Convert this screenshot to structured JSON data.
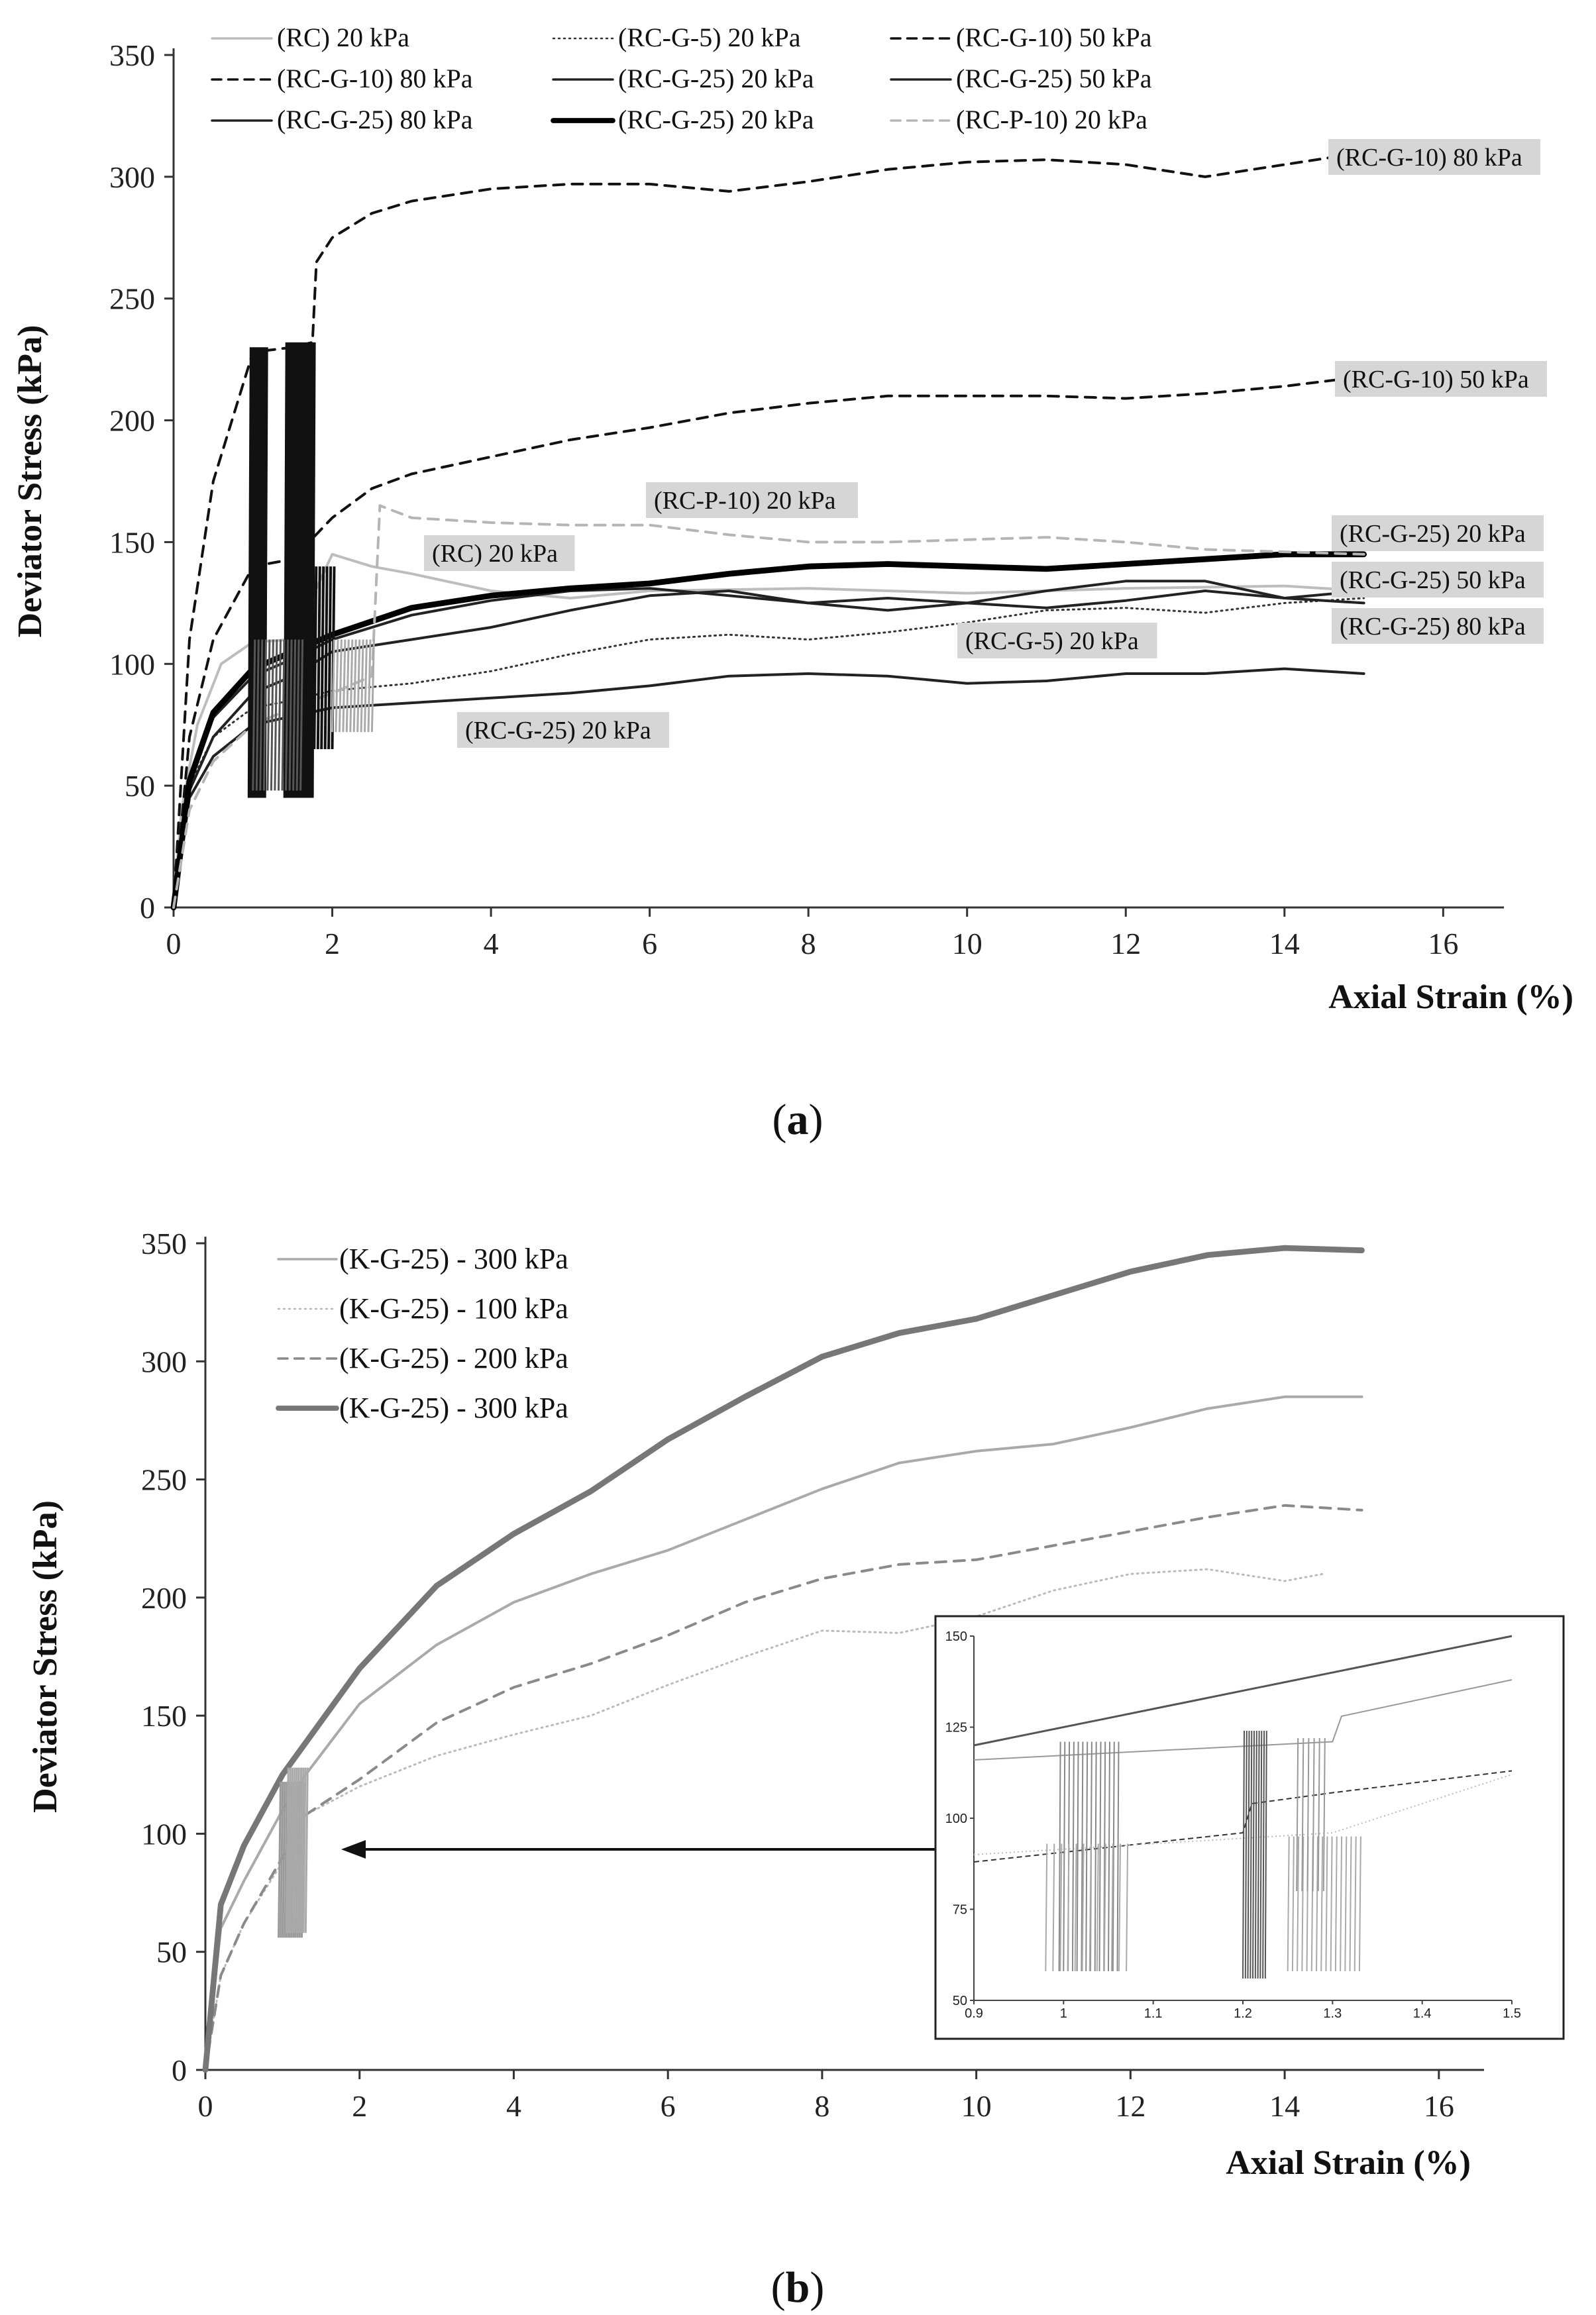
{
  "chart_data": [
    {
      "panel": "(a)",
      "caption_letter": "a",
      "type": "line",
      "xlabel": "Axial Strain  (%)",
      "ylabel": "Deviator Stress  (kPa)",
      "xlim": [
        0,
        17.5
      ],
      "ylim": [
        0,
        350
      ],
      "xticks": [
        0,
        2,
        4,
        6,
        8,
        10,
        12,
        14,
        16
      ],
      "yticks": [
        0,
        50,
        100,
        150,
        200,
        250,
        300,
        350
      ],
      "legend_position": "top",
      "series": [
        {
          "name": "(RC) 20 kPa",
          "color": "#bdbdbd",
          "style": "solid",
          "x": [
            0,
            0.1,
            0.3,
            0.6,
            1.0,
            1.5,
            2.0,
            2.5,
            3.0,
            4.0,
            5.0,
            6.0,
            8.0,
            10.0,
            12.0,
            14.0,
            15.0
          ],
          "y": [
            0,
            40,
            75,
            100,
            109,
            110,
            145,
            140,
            137,
            130,
            127,
            130,
            131,
            129,
            131,
            132,
            130
          ]
        },
        {
          "name": "(RC-G-5) 20 kPa",
          "color": "#333333",
          "style": "dotted",
          "x": [
            0,
            0.2,
            0.5,
            1.0,
            1.5,
            2.0,
            3.0,
            4.0,
            5.0,
            6.0,
            7.0,
            8.0,
            9.0,
            10.0,
            11.0,
            12.0,
            13.0,
            14.0,
            15.0
          ],
          "y": [
            0,
            50,
            70,
            82,
            85,
            89,
            92,
            97,
            104,
            110,
            112,
            110,
            113,
            117,
            122,
            123,
            121,
            125,
            127
          ]
        },
        {
          "name": "(RC-G-10) 50 kPa",
          "color": "#111111",
          "style": "dashed",
          "x": [
            0,
            0.2,
            0.5,
            1.0,
            1.5,
            2.0,
            2.5,
            3.0,
            4.0,
            5.0,
            6.0,
            7.0,
            8.0,
            9.0,
            10.0,
            11.0,
            12.0,
            13.0,
            14.0,
            15.0
          ],
          "y": [
            0,
            70,
            110,
            140,
            143,
            160,
            172,
            178,
            185,
            192,
            197,
            203,
            207,
            210,
            210,
            210,
            209,
            211,
            214,
            218
          ]
        },
        {
          "name": "(RC-G-10) 80 kPa",
          "color": "#111111",
          "style": "dashed",
          "x": [
            0,
            0.2,
            0.5,
            1.0,
            1.5,
            1.75,
            1.8,
            2.0,
            2.5,
            3.0,
            4.0,
            5.0,
            6.0,
            7.0,
            8.0,
            9.0,
            10.0,
            11.0,
            12.0,
            13.0,
            14.0,
            15.0
          ],
          "y": [
            0,
            110,
            175,
            228,
            230,
            232,
            265,
            275,
            285,
            290,
            295,
            297,
            297,
            294,
            298,
            303,
            306,
            307,
            305,
            300,
            305,
            310
          ]
        },
        {
          "name": "(RC-G-25) 20 kPa",
          "color": "#222222",
          "style": "solid",
          "x": [
            0,
            0.2,
            0.5,
            1.0,
            2.0,
            3.0,
            4.0,
            5.0,
            6.0,
            7.0,
            8.0,
            9.0,
            10.0,
            11.0,
            12.0,
            13.0,
            14.0,
            15.0
          ],
          "y": [
            0,
            45,
            62,
            75,
            82,
            84,
            86,
            88,
            91,
            95,
            96,
            95,
            92,
            93,
            96,
            96,
            98,
            96
          ]
        },
        {
          "name": "(RC-G-25) 50 kPa",
          "color": "#222222",
          "style": "solid",
          "x": [
            0,
            0.2,
            0.5,
            1.0,
            1.5,
            2.0,
            3.0,
            4.0,
            5.0,
            6.0,
            7.0,
            8.0,
            9.0,
            10.0,
            11.0,
            12.0,
            13.0,
            14.0,
            15.0
          ],
          "y": [
            0,
            48,
            70,
            88,
            95,
            105,
            110,
            115,
            122,
            128,
            130,
            125,
            122,
            125,
            130,
            134,
            134,
            127,
            130
          ]
        },
        {
          "name": "(RC-G-25) 80 kPa",
          "color": "#222222",
          "style": "solid",
          "x": [
            0,
            0.2,
            0.5,
            1.0,
            1.5,
            2.0,
            3.0,
            4.0,
            5.0,
            6.0,
            7.0,
            8.0,
            9.0,
            10.0,
            11.0,
            12.0,
            13.0,
            14.0,
            15.0
          ],
          "y": [
            0,
            50,
            78,
            95,
            102,
            110,
            120,
            126,
            130,
            131,
            128,
            125,
            127,
            125,
            123,
            126,
            130,
            127,
            125
          ]
        },
        {
          "name": "(RC-G-25) 20 kPa",
          "color": "#000000",
          "style": "bold",
          "x": [
            0,
            0.2,
            0.5,
            1.0,
            1.5,
            2.0,
            3.0,
            4.0,
            5.0,
            6.0,
            7.0,
            8.0,
            9.0,
            10.0,
            11.0,
            12.0,
            13.0,
            14.0,
            15.0
          ],
          "y": [
            0,
            52,
            80,
            98,
            105,
            112,
            123,
            128,
            131,
            133,
            137,
            140,
            141,
            140,
            139,
            141,
            143,
            145,
            145
          ]
        },
        {
          "name": "(RC-P-10) 20 kPa",
          "color": "#b5b5b5",
          "style": "dashed",
          "x": [
            0,
            0.2,
            0.5,
            1.0,
            1.5,
            2.0,
            2.5,
            2.6,
            3.0,
            4.0,
            5.0,
            6.0,
            7.0,
            8.0,
            9.0,
            10.0,
            11.0,
            12.0,
            13.0,
            14.0,
            15.0
          ],
          "y": [
            0,
            40,
            60,
            75,
            82,
            88,
            95,
            165,
            160,
            158,
            157,
            157,
            153,
            150,
            150,
            151,
            152,
            150,
            147,
            146,
            145
          ]
        }
      ],
      "annotations": [
        {
          "text": "(RC-G-10) 80 kPa"
        },
        {
          "text": "(RC-G-10) 50 kPa"
        },
        {
          "text": "(RC-P-10) 20 kPa"
        },
        {
          "text": "(RC) 20 kPa"
        },
        {
          "text": "(RC-G-25) 20 kPa"
        },
        {
          "text": "(RC-G-25) 50 kPa"
        },
        {
          "text": "(RC-G-25) 80 kPa"
        },
        {
          "text": "(RC-G-5) 20 kPa"
        },
        {
          "text": "(RC-G-25) 20 kPa"
        }
      ]
    },
    {
      "panel": "(b)",
      "caption_letter": "b",
      "type": "line",
      "xlabel": "Axial Strain  (%)",
      "ylabel": "Deviator Stress  (kPa)",
      "xlim": [
        0,
        16.5
      ],
      "ylim": [
        0,
        350
      ],
      "xticks": [
        0,
        2,
        4,
        6,
        8,
        10,
        12,
        14,
        16
      ],
      "yticks": [
        0,
        50,
        100,
        150,
        200,
        250,
        300,
        350
      ],
      "legend_position": "top-left",
      "series": [
        {
          "name": "(K-G-25) - 300 kPa",
          "color": "#aaaaaa",
          "style": "solid",
          "x": [
            0,
            0.2,
            0.5,
            1.0,
            1.3,
            2.0,
            3.0,
            4.0,
            5.0,
            6.0,
            7.0,
            8.0,
            9.0,
            10.0,
            11.0,
            12.0,
            13.0,
            14.0,
            15.0
          ],
          "y": [
            0,
            60,
            80,
            110,
            125,
            155,
            180,
            198,
            210,
            220,
            233,
            246,
            257,
            262,
            265,
            272,
            280,
            285,
            285
          ]
        },
        {
          "name": "(K-G-25) - 100 kPa",
          "color": "#bbbbbb",
          "style": "dotted",
          "x": [
            0,
            0.2,
            0.5,
            1.0,
            1.3,
            2.0,
            3.0,
            4.0,
            5.0,
            6.0,
            7.0,
            8.0,
            9.0,
            10.0,
            11.0,
            12.0,
            13.0,
            14.0,
            14.5
          ],
          "y": [
            0,
            40,
            62,
            88,
            108,
            120,
            133,
            142,
            150,
            163,
            175,
            186,
            185,
            192,
            203,
            210,
            212,
            207,
            210
          ]
        },
        {
          "name": "(K-G-25) - 200 kPa",
          "color": "#8a8a8a",
          "style": "dashed",
          "x": [
            0,
            0.2,
            0.5,
            1.0,
            1.3,
            2.0,
            3.0,
            4.0,
            5.0,
            6.0,
            7.0,
            8.0,
            9.0,
            10.0,
            11.0,
            12.0,
            13.0,
            14.0,
            15.0
          ],
          "y": [
            0,
            40,
            62,
            90,
            108,
            123,
            147,
            162,
            172,
            184,
            198,
            208,
            214,
            216,
            222,
            228,
            234,
            239,
            237
          ]
        },
        {
          "name": "(K-G-25) - 300 kPa",
          "color": "#777777",
          "style": "bold",
          "x": [
            0,
            0.2,
            0.5,
            1.0,
            2.0,
            3.0,
            4.0,
            5.0,
            6.0,
            7.0,
            8.0,
            9.0,
            10.0,
            11.0,
            12.0,
            13.0,
            14.0,
            15.0
          ],
          "y": [
            0,
            70,
            95,
            125,
            170,
            205,
            227,
            245,
            267,
            285,
            302,
            312,
            318,
            328,
            338,
            345,
            348,
            347
          ]
        }
      ],
      "inset": {
        "xlim": [
          0.9,
          1.5
        ],
        "ylim": [
          50,
          150
        ],
        "xticks": [
          "0.9",
          "1",
          "1.1",
          "1.2",
          "1.3",
          "1.4",
          "1.5"
        ],
        "yticks": [
          "50",
          "75",
          "100",
          "125",
          "150"
        ]
      }
    }
  ]
}
